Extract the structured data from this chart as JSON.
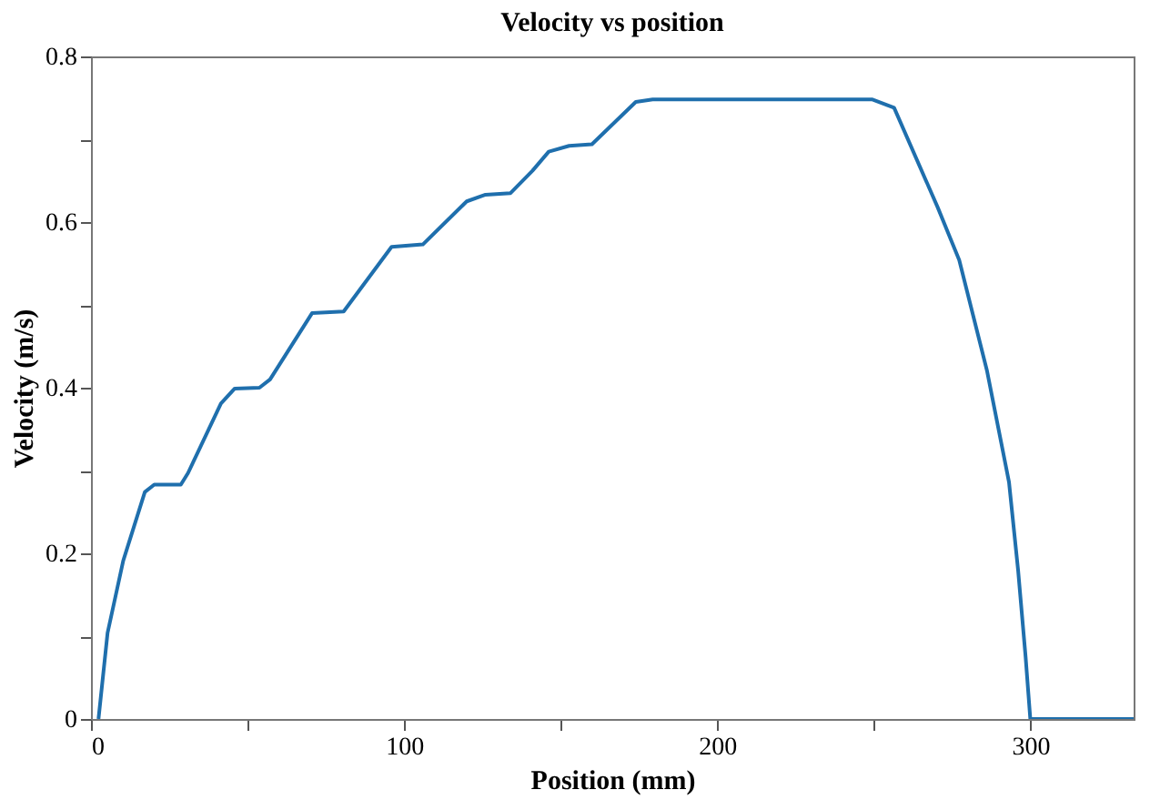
{
  "chart_data": {
    "type": "line",
    "title": "Velocity vs position",
    "xlabel": "Position (mm)",
    "ylabel": "Velocity (m/s)",
    "x": [
      2.4,
      5.3,
      10.3,
      17.2,
      20.2,
      28.7,
      31,
      41.5,
      45.9,
      53.8,
      57.2,
      70.6,
      80.7,
      96,
      106,
      120,
      126,
      134,
      141,
      146.2,
      152.7,
      160,
      174,
      179.4,
      249.6,
      256.5,
      270.4,
      277.3,
      286.2,
      293.2,
      296.1,
      298.5,
      300,
      333
    ],
    "series": [
      {
        "color": "#1f6fad",
        "values": [
          0,
          0.104,
          0.191,
          0.274,
          0.283,
          0.283,
          0.297,
          0.381,
          0.399,
          0.4,
          0.41,
          0.49,
          0.492,
          0.57,
          0.573,
          0.625,
          0.633,
          0.635,
          0.662,
          0.685,
          0.692,
          0.694,
          0.745,
          0.748,
          0.748,
          0.738,
          0.618,
          0.554,
          0.42,
          0.286,
          0.18,
          0.075,
          0,
          0
        ]
      }
    ],
    "xlim": [
      0,
      333
    ],
    "ylim": [
      0,
      0.8
    ],
    "xticks": [
      0,
      {
        "value": 50,
        "label": null
      },
      100,
      {
        "value": 150,
        "label": null
      },
      200,
      {
        "value": 250,
        "label": null
      },
      300
    ],
    "yticks": [
      0,
      {
        "value": 0.1,
        "label": null
      },
      0.2,
      {
        "value": 0.3,
        "label": null
      },
      0.4,
      {
        "value": 0.5,
        "label": null
      },
      0.6,
      {
        "value": 0.7,
        "label": null
      },
      0.8
    ],
    "grid": false,
    "marker": "none",
    "line_style": "solid"
  }
}
